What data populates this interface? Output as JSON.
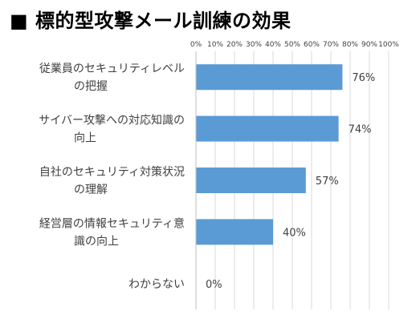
{
  "title": "■ 標的型攻撃メール訓練の効果",
  "chart_data": {
    "type": "bar",
    "orientation": "horizontal",
    "categories": [
      [
        "従業員のセキュリティレベル",
        "の把握"
      ],
      [
        "サイバー攻撃への対応知識の",
        "向上"
      ],
      [
        "自社のセキュリティ対策状況",
        "の理解"
      ],
      [
        "経営層の情報セキュリティ意",
        "識の向上"
      ],
      [
        "わからない"
      ]
    ],
    "values": [
      76,
      74,
      57,
      40,
      0
    ],
    "data_labels": [
      "76%",
      "74%",
      "57%",
      "40%",
      "0%"
    ],
    "x_ticks": [
      "0%",
      "10%",
      "20%",
      "30%",
      "40%",
      "50%",
      "60%",
      "70%",
      "80%",
      "90%",
      "100%"
    ],
    "xlim": [
      0,
      100
    ],
    "xaxis_position": "top",
    "grid": true,
    "colors": {
      "bar": "#5B9BD5",
      "grid": "#D9D9D9",
      "text": "#404040"
    }
  }
}
